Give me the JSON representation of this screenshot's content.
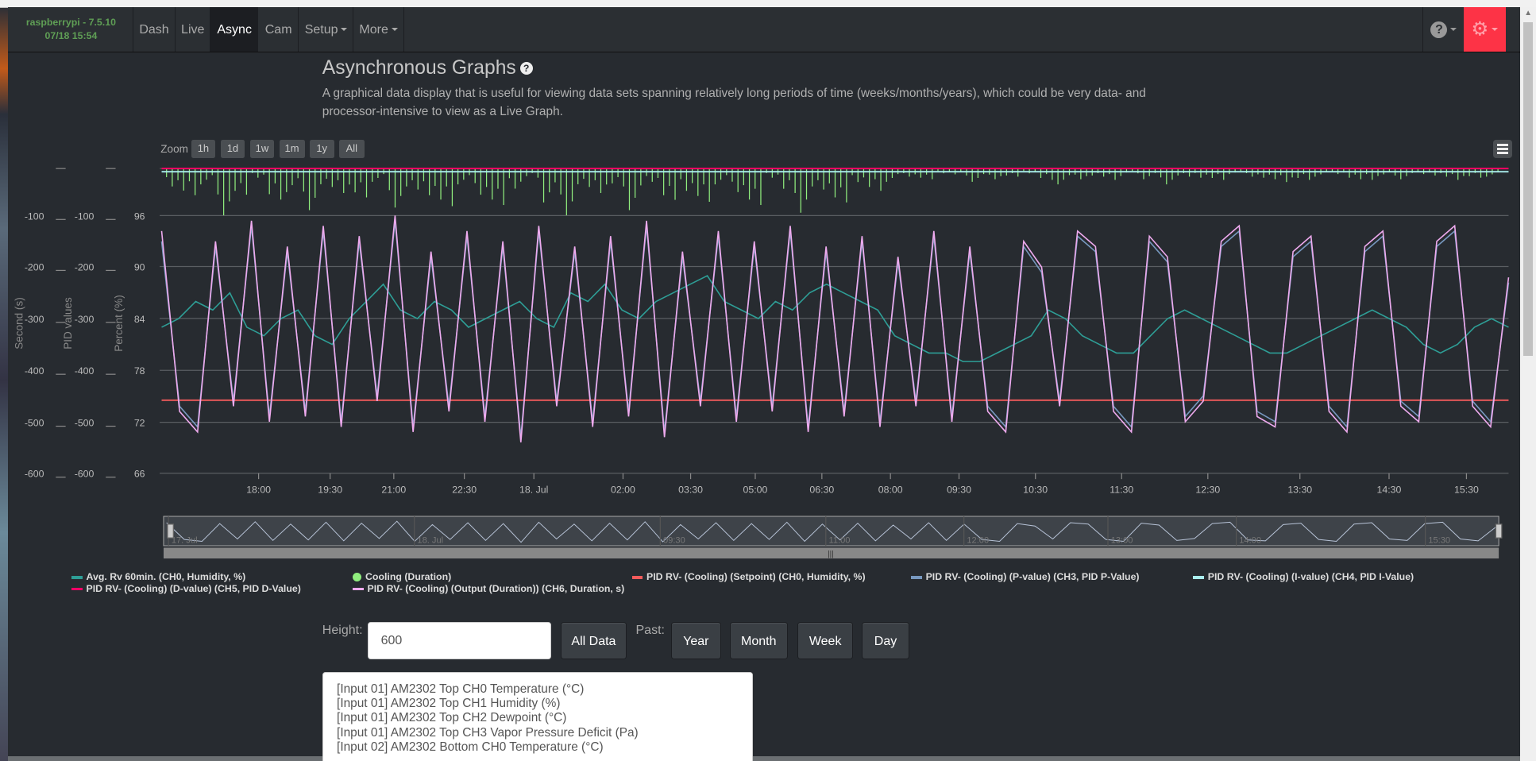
{
  "nav": {
    "brand_line1": "raspberrypi - 7.5.10",
    "brand_line2": "07/18 15:54",
    "items": [
      {
        "label": "Dash"
      },
      {
        "label": "Live"
      },
      {
        "label": "Async",
        "active": true
      },
      {
        "label": "Cam"
      },
      {
        "label": "Setup",
        "dropdown": true
      },
      {
        "label": "More",
        "dropdown": true
      }
    ],
    "help_icon": "question-circle-icon",
    "settings_icon": "gear-icon",
    "settings_color": "#fd3346"
  },
  "page": {
    "title": "Asynchronous Graphs",
    "description": "A graphical data display that is useful for viewing data sets spanning relatively long periods of time (weeks/months/years), which could be very data- and processor-intensive to view as a Live Graph."
  },
  "zoom": {
    "label": "Zoom",
    "buttons": [
      "1h",
      "1d",
      "1w",
      "1m",
      "1y",
      "All"
    ]
  },
  "chart_data": {
    "type": "line",
    "grid": true,
    "legend_placement": "bottom",
    "axes": {
      "second": {
        "label": "Second (s)",
        "ticks": [
          "-100",
          "-200",
          "-300",
          "-400",
          "-500",
          "-600"
        ],
        "range": [
          -600,
          0
        ]
      },
      "pid": {
        "label": "PID values",
        "ticks": [
          "-100",
          "-200",
          "-300",
          "-400",
          "-500",
          "-600"
        ],
        "range": [
          -600,
          0
        ]
      },
      "percent": {
        "label": "Percent (%)",
        "ticks": [
          "96",
          "90",
          "84",
          "78",
          "72",
          "66"
        ],
        "range": [
          66,
          101
        ]
      }
    },
    "x_ticks": [
      "18:00",
      "19:30",
      "21:00",
      "22:30",
      "18. Jul",
      "02:00",
      "03:30",
      "05:00",
      "06:30",
      "08:00",
      "09:30",
      "10:30",
      "11:30",
      "12:30",
      "13:30",
      "14:30",
      "15:30"
    ],
    "navigator_ticks": [
      "17. Jul",
      "18. Jul",
      "09:30",
      "11:00",
      "12:00",
      "13:00",
      "14:00",
      "15:30"
    ],
    "series": [
      {
        "name": "Avg. Rv 60min. (CH0, Humidity, %)",
        "color": "#2e9e96",
        "axis": "percent",
        "values": [
          83,
          84,
          86,
          85,
          87,
          83,
          82,
          84,
          85,
          82,
          81,
          84,
          86,
          88,
          85,
          84,
          86,
          85,
          83,
          84,
          85,
          86,
          84,
          83,
          87,
          86,
          88,
          85,
          84,
          86,
          87,
          88,
          89,
          86,
          85,
          84,
          86,
          85,
          87,
          88,
          87,
          86,
          85,
          82,
          81,
          80,
          80,
          79,
          79,
          80,
          81,
          82,
          85,
          84,
          82,
          81,
          80,
          80,
          82,
          84,
          85,
          84,
          83,
          82,
          81,
          80,
          80,
          81,
          82,
          83,
          84,
          85,
          84,
          83,
          81,
          80,
          81,
          83,
          84,
          83
        ]
      },
      {
        "name": "Cooling (Duration)",
        "color": "#90ee7e",
        "axis": "second",
        "type": "column",
        "values": [
          40,
          60,
          30,
          90,
          50,
          20,
          70,
          45,
          80,
          35,
          55,
          65,
          25,
          75,
          40,
          60,
          85,
          30,
          50,
          70,
          45,
          20,
          65,
          90,
          35,
          55,
          40,
          80,
          25,
          60,
          50,
          75,
          30,
          45,
          70,
          20,
          55,
          85,
          40,
          65,
          30,
          50,
          25,
          15,
          20,
          10,
          15,
          25,
          20,
          15,
          10,
          25,
          30,
          20,
          15,
          25,
          10,
          20,
          30,
          15,
          20,
          25,
          10,
          15,
          20,
          30,
          25,
          15,
          10,
          20,
          25,
          15,
          20,
          10,
          15,
          25,
          20,
          15
        ]
      },
      {
        "name": "PID RV- (Cooling) (Setpoint) (CH0, Humidity, %)",
        "color": "#f45b5b",
        "axis": "percent",
        "values": [
          74.5,
          74.5
        ]
      },
      {
        "name": "PID RV- (Cooling) (P-value) (CH3, PID P-Value)",
        "color": "#7798bf",
        "axis": "pid",
        "values": [
          -150,
          -470,
          -510,
          -160,
          -460,
          -120,
          -490,
          -170,
          -480,
          -130,
          -500,
          -150,
          -450,
          -110,
          -510,
          -180,
          -470,
          -140,
          -490,
          -160,
          -530,
          -130,
          -460,
          -170,
          -500,
          -150,
          -480,
          -120,
          -520,
          -180,
          -460,
          -140,
          -490,
          -160,
          -470,
          -130,
          -510,
          -170,
          -480,
          -150,
          -500,
          -190,
          -460,
          -140,
          -490,
          -170,
          -470,
          -510,
          -160,
          -210,
          -460,
          -140,
          -170,
          -470,
          -510,
          -150,
          -190,
          -490,
          -450,
          -160,
          -130,
          -480,
          -500,
          -180,
          -150,
          -470,
          -510,
          -170,
          -140,
          -460,
          -490,
          -160,
          -130,
          -460,
          -500,
          -230
        ]
      },
      {
        "name": "PID RV- (Cooling) (I-value) (CH4, PID I-Value)",
        "color": "#aaeeee",
        "axis": "pid",
        "values": [
          -15,
          -15
        ]
      },
      {
        "name": "PID RV- (Cooling) (D-value) (CH5, PID D-Value)",
        "color": "#ff0066",
        "axis": "pid",
        "values": [
          0,
          0
        ]
      },
      {
        "name": "PID RV- (Cooling) (Output (Duration)) (CH6, Duration, s)",
        "color": "#eeaaee",
        "axis": "second",
        "values": [
          -130,
          -480,
          -520,
          -150,
          -470,
          -110,
          -500,
          -160,
          -490,
          -120,
          -510,
          -140,
          -460,
          -100,
          -520,
          -170,
          -480,
          -130,
          -500,
          -150,
          -540,
          -120,
          -470,
          -160,
          -510,
          -140,
          -490,
          -110,
          -530,
          -170,
          -470,
          -130,
          -500,
          -150,
          -480,
          -120,
          -520,
          -160,
          -490,
          -140,
          -510,
          -180,
          -470,
          -130,
          -500,
          -160,
          -480,
          -520,
          -150,
          -200,
          -470,
          -130,
          -160,
          -480,
          -520,
          -140,
          -180,
          -500,
          -460,
          -150,
          -120,
          -490,
          -510,
          -170,
          -140,
          -480,
          -520,
          -160,
          -130,
          -470,
          -500,
          -150,
          -120,
          -470,
          -510,
          -220
        ]
      }
    ]
  },
  "controls": {
    "height_label": "Height:",
    "height_value": "600",
    "all_data": "All Data",
    "past_label": "Past:",
    "past_buttons": [
      "Year",
      "Month",
      "Week",
      "Day"
    ]
  },
  "measurements": [
    "[Input 01] AM2302 Top CH0 Temperature (°C)",
    "[Input 01] AM2302 Top CH1 Humidity (%)",
    "[Input 01] AM2302 Top CH2 Dewpoint (°C)",
    "[Input 01] AM2302 Top CH3 Vapor Pressure Deficit (Pa)",
    "[Input 02] AM2302 Bottom CH0 Temperature (°C)"
  ]
}
